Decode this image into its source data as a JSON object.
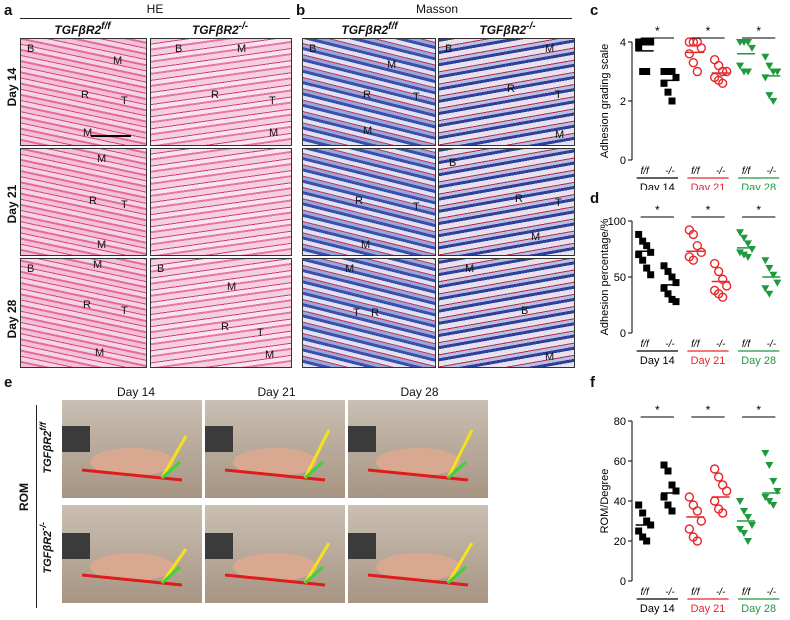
{
  "panel_labels": {
    "a": "a",
    "b": "b",
    "c": "c",
    "d": "d",
    "e": "e",
    "f": "f"
  },
  "headers": {
    "he": "HE",
    "masson": "Masson"
  },
  "genotypes": {
    "ff": "TGFβR2",
    "ff_sup": "f/f",
    "ko": "TGFβR2",
    "ko_sup": "-/-"
  },
  "days": [
    "Day 14",
    "Day 21",
    "Day 28"
  ],
  "tissue_labels": {
    "B": "B",
    "M": "M",
    "R": "R",
    "T": "T"
  },
  "rom": {
    "side_label": "ROM"
  },
  "colors": {
    "day14": "#000000",
    "day21": "#e8262a",
    "day28": "#1e9a3c",
    "yellow": "#f5e21a",
    "green": "#3fd23a",
    "red": "#e01b1b"
  },
  "chart_data": [
    {
      "type": "scatter",
      "ylabel": "Adhesion grading scale",
      "ylim": [
        0,
        4
      ],
      "yticks": [
        "0",
        "2",
        "4"
      ],
      "groups": [
        {
          "label": "f/f",
          "day": "Day 14",
          "color": "#000000",
          "marker": "square",
          "values": [
            4,
            4,
            4,
            4,
            3.8,
            3,
            3
          ]
        },
        {
          "label": "-/-",
          "day": "Day 14",
          "color": "#000000",
          "marker": "square",
          "values": [
            3,
            3,
            3,
            2.8,
            2.6,
            2.3,
            2
          ]
        },
        {
          "label": "f/f",
          "day": "Day 21",
          "color": "#e8262a",
          "marker": "circle",
          "values": [
            4,
            4,
            4,
            3.8,
            3.6,
            3.3,
            3
          ]
        },
        {
          "label": "-/-",
          "day": "Day 21",
          "color": "#e8262a",
          "marker": "circle",
          "values": [
            3.4,
            3.2,
            3,
            3,
            2.8,
            2.7,
            2.6
          ]
        },
        {
          "label": "f/f",
          "day": "Day 28",
          "color": "#1e9a3c",
          "marker": "triangle-down",
          "values": [
            4,
            4,
            4,
            3.8,
            3.2,
            3,
            3
          ]
        },
        {
          "label": "-/-",
          "day": "Day 28",
          "color": "#1e9a3c",
          "marker": "triangle-down",
          "values": [
            3.5,
            3.2,
            3,
            3,
            2.8,
            2.2,
            2
          ]
        }
      ],
      "means": [
        3.7,
        2.7,
        3.65,
        2.95,
        3.6,
        2.85
      ],
      "significance": [
        "*",
        "*",
        "*"
      ]
    },
    {
      "type": "scatter",
      "ylabel": "Adhesion percentage/%",
      "ylim": [
        0,
        100
      ],
      "yticks": [
        "0",
        "50",
        "100"
      ],
      "groups": [
        {
          "label": "f/f",
          "day": "Day 14",
          "color": "#000000",
          "marker": "square",
          "values": [
            88,
            82,
            78,
            72,
            70,
            65,
            58,
            52
          ]
        },
        {
          "label": "-/-",
          "day": "Day 14",
          "color": "#000000",
          "marker": "square",
          "values": [
            60,
            55,
            50,
            45,
            40,
            35,
            30,
            28
          ]
        },
        {
          "label": "f/f",
          "day": "Day 21",
          "color": "#e8262a",
          "marker": "circle",
          "values": [
            92,
            88,
            78,
            72,
            68,
            65
          ]
        },
        {
          "label": "-/-",
          "day": "Day 21",
          "color": "#e8262a",
          "marker": "circle",
          "values": [
            62,
            55,
            48,
            42,
            38,
            35,
            32
          ]
        },
        {
          "label": "f/f",
          "day": "Day 28",
          "color": "#1e9a3c",
          "marker": "triangle-down",
          "values": [
            90,
            85,
            80,
            75,
            72,
            70,
            68
          ]
        },
        {
          "label": "-/-",
          "day": "Day 28",
          "color": "#1e9a3c",
          "marker": "triangle-down",
          "values": [
            65,
            58,
            52,
            45,
            40,
            35
          ]
        }
      ],
      "means": [
        73,
        43,
        73,
        46,
        76,
        50
      ],
      "significance": [
        "*",
        "*",
        "*"
      ]
    },
    {
      "type": "scatter",
      "ylabel": "ROM/Degree",
      "ylim": [
        0,
        80
      ],
      "yticks": [
        "0",
        "20",
        "40",
        "60",
        "80"
      ],
      "groups": [
        {
          "label": "f/f",
          "day": "Day 14",
          "color": "#000000",
          "marker": "square",
          "values": [
            38,
            34,
            30,
            28,
            25,
            22,
            20
          ]
        },
        {
          "label": "-/-",
          "day": "Day 14",
          "color": "#000000",
          "marker": "square",
          "values": [
            58,
            55,
            48,
            45,
            42,
            38,
            35
          ]
        },
        {
          "label": "f/f",
          "day": "Day 21",
          "color": "#e8262a",
          "marker": "circle",
          "values": [
            42,
            38,
            35,
            30,
            26,
            22,
            20
          ]
        },
        {
          "label": "-/-",
          "day": "Day 21",
          "color": "#e8262a",
          "marker": "circle",
          "values": [
            56,
            52,
            48,
            45,
            40,
            36,
            34
          ]
        },
        {
          "label": "f/f",
          "day": "Day 28",
          "color": "#1e9a3c",
          "marker": "triangle-down",
          "values": [
            40,
            35,
            32,
            28,
            26,
            24,
            20
          ]
        },
        {
          "label": "-/-",
          "day": "Day 28",
          "color": "#1e9a3c",
          "marker": "triangle-down",
          "values": [
            64,
            58,
            50,
            45,
            42,
            40,
            38
          ]
        }
      ],
      "means": [
        28,
        44,
        32,
        42,
        30,
        44
      ],
      "significance": [
        "*",
        "*",
        "*"
      ]
    }
  ]
}
